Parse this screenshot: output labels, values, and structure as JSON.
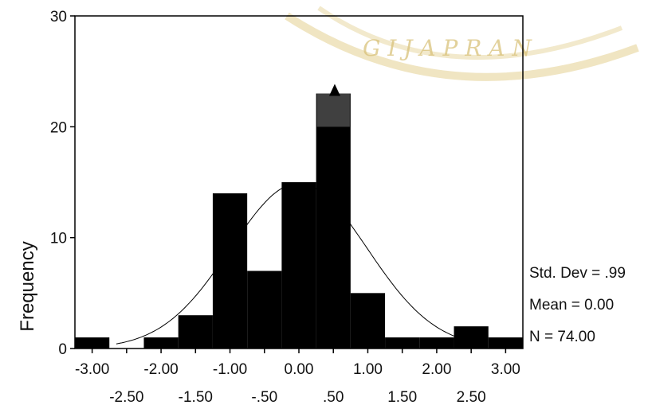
{
  "chart_data": {
    "type": "bar",
    "title": "",
    "xlabel": "",
    "ylabel": "Frequency",
    "ylim": [
      0,
      30
    ],
    "xlim": [
      -3.25,
      3.25
    ],
    "bin_width": 0.5,
    "bins": [
      {
        "center": -3.0,
        "value": 1
      },
      {
        "center": -2.5,
        "value": 0
      },
      {
        "center": -2.0,
        "value": 1
      },
      {
        "center": -1.5,
        "value": 3
      },
      {
        "center": -1.0,
        "value": 14
      },
      {
        "center": -0.5,
        "value": 7
      },
      {
        "center": 0.0,
        "value": 15
      },
      {
        "center": 0.5,
        "value": 23
      },
      {
        "center": 1.0,
        "value": 5
      },
      {
        "center": 1.5,
        "value": 1
      },
      {
        "center": 2.0,
        "value": 1
      },
      {
        "center": 2.5,
        "value": 2
      },
      {
        "center": 3.0,
        "value": 1
      }
    ],
    "y_ticks": [
      "0",
      "10",
      "20",
      "30"
    ],
    "y_tick_values": [
      0,
      10,
      20,
      30
    ],
    "x_ticks_upper": [
      "-3.00",
      "-2.00",
      "-1.00",
      "0.00",
      "1.00",
      "2.00",
      "3.00"
    ],
    "x_ticks_upper_values": [
      -3.0,
      -2.0,
      -1.0,
      0.0,
      1.0,
      2.0,
      3.0
    ],
    "x_ticks_lower": [
      "-2.50",
      "-1.50",
      "-.50",
      ".50",
      "1.50",
      "2.50"
    ],
    "x_ticks_lower_values": [
      -2.5,
      -1.5,
      -0.5,
      0.5,
      1.5,
      2.5
    ],
    "normal_curve": {
      "mean": 0.0,
      "sd": 0.99,
      "n": 74
    },
    "stats": {
      "std_dev": "Std. Dev = .99",
      "mean": "Mean = 0.00",
      "n": "N = 74.00"
    },
    "grid": false,
    "colors": {
      "bar": "#000000",
      "highlight": "#404040",
      "curve": "#000000",
      "watermark": "#d9c27a"
    }
  },
  "watermark": {
    "text": "G I J A P R A N"
  }
}
